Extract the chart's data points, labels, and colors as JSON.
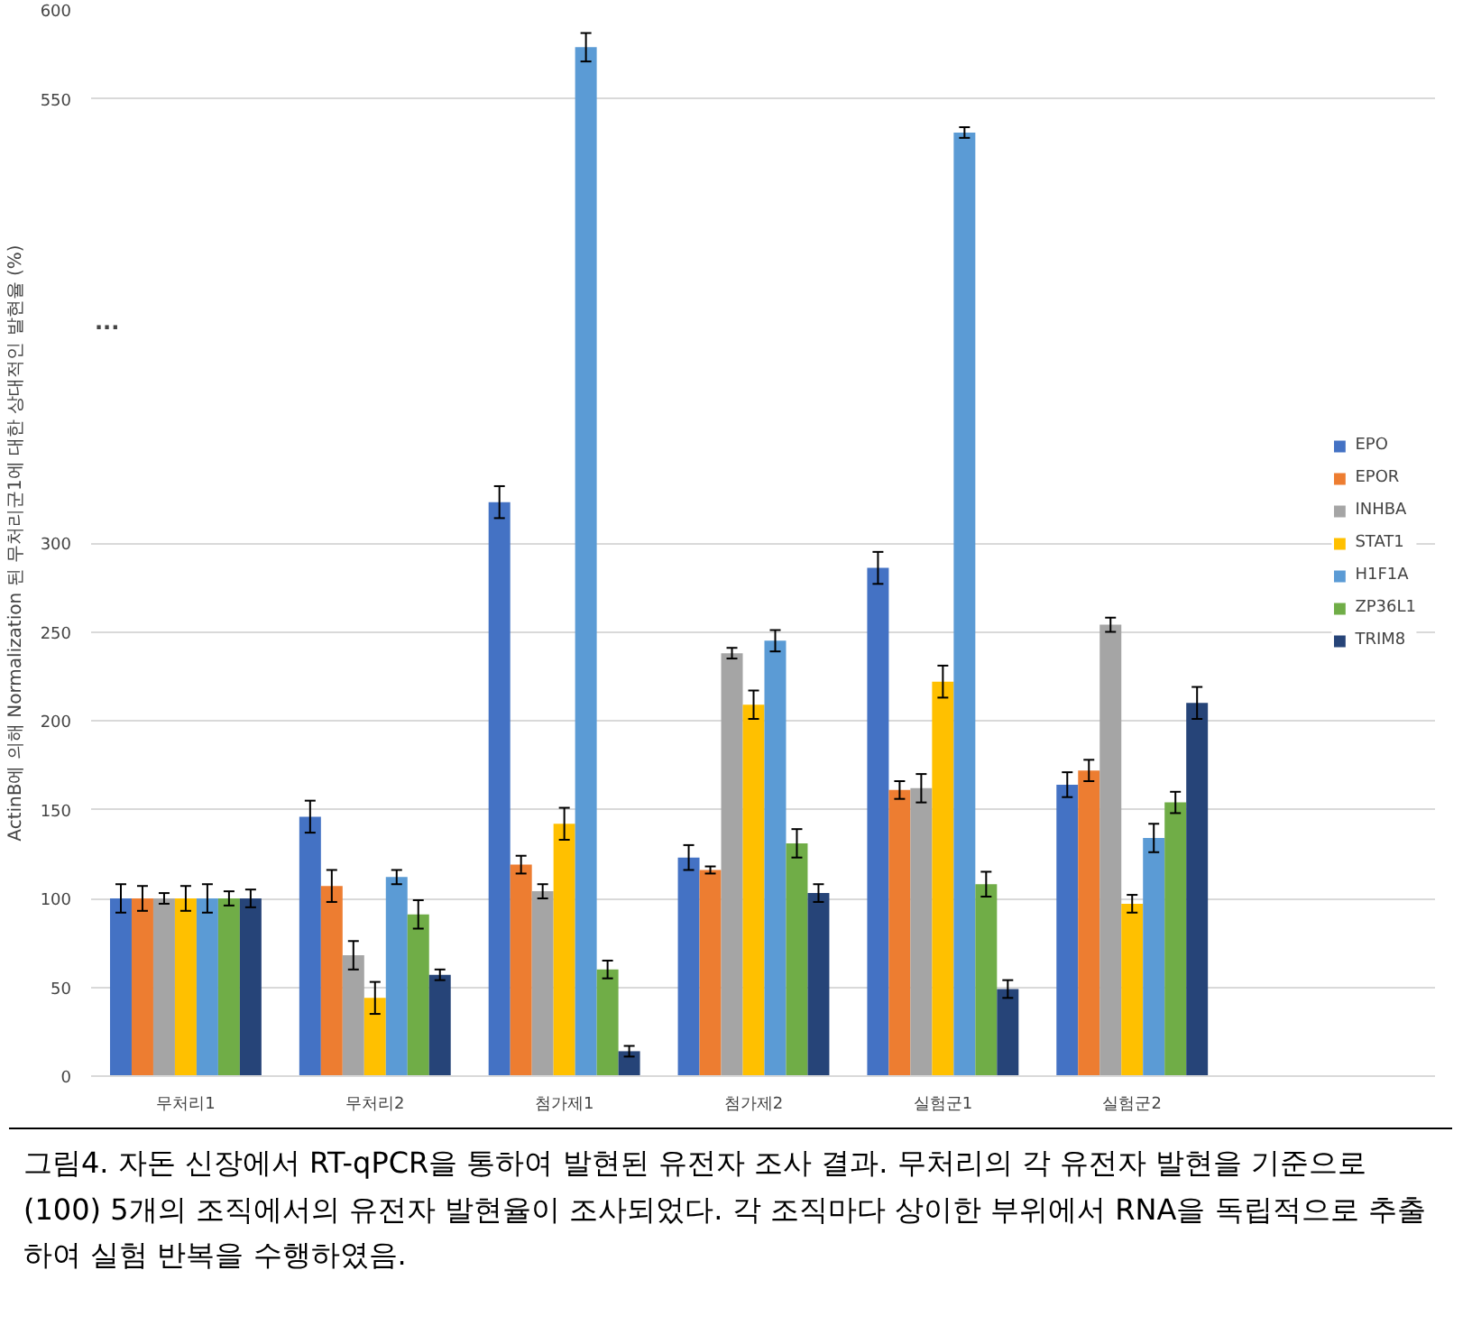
{
  "chart_data": {
    "type": "bar",
    "ylabel": "ActinB에 의해 Normalization 된 무처리군1에 대한 상대적인 발현율 (%)",
    "categories": [
      "무처리1",
      "무처리2",
      "첨가제1",
      "첨가제2",
      "실험군1",
      "실험군2"
    ],
    "series": [
      {
        "name": "EPO",
        "color": "#4472c4",
        "values": [
          100,
          146,
          323,
          123,
          286,
          164
        ],
        "errors": [
          8,
          9,
          9,
          7,
          9,
          7
        ]
      },
      {
        "name": "EPOR",
        "color": "#ed7d31",
        "values": [
          100,
          107,
          119,
          116,
          161,
          172
        ],
        "errors": [
          7,
          9,
          5,
          2,
          5,
          6
        ]
      },
      {
        "name": "INHBA",
        "color": "#a5a5a5",
        "values": [
          100,
          68,
          104,
          238,
          162,
          254
        ],
        "errors": [
          3,
          8,
          4,
          3,
          8,
          4
        ]
      },
      {
        "name": "STAT1",
        "color": "#ffc000",
        "values": [
          100,
          44,
          142,
          209,
          222,
          97
        ],
        "errors": [
          7,
          9,
          9,
          8,
          9,
          5
        ]
      },
      {
        "name": "H1F1A",
        "color": "#5b9bd5",
        "values": [
          100,
          112,
          579,
          245,
          531,
          134
        ],
        "errors": [
          8,
          4,
          8,
          6,
          3,
          8
        ]
      },
      {
        "name": "ZP36L1",
        "color": "#70ad47",
        "values": [
          100,
          91,
          60,
          131,
          108,
          154
        ],
        "errors": [
          4,
          8,
          5,
          8,
          7,
          6
        ]
      },
      {
        "name": "TRIM8",
        "color": "#264478",
        "values": [
          100,
          57,
          14,
          103,
          49,
          210
        ],
        "errors": [
          5,
          3,
          3,
          5,
          5,
          9
        ]
      }
    ],
    "ylim": [
      0,
      600
    ],
    "yticks": [
      0,
      50,
      100,
      150,
      200,
      250,
      300,
      550,
      600
    ],
    "grid": "y",
    "legend": "right",
    "annotations": [
      "...",
      "그림4. 자돈 신장에서 RT-qPCR을 통하여 발현된 유전자 조사 결과. 무처리의 각 유전자 발현을 기준으로 (100) 5개의 조직에서의 유전자 발현율이 조사되었다. 각 조직마다 상이한 부위에서 RNA을 독립적으로 추출하여 실험 반복을 수행하였음."
    ]
  }
}
